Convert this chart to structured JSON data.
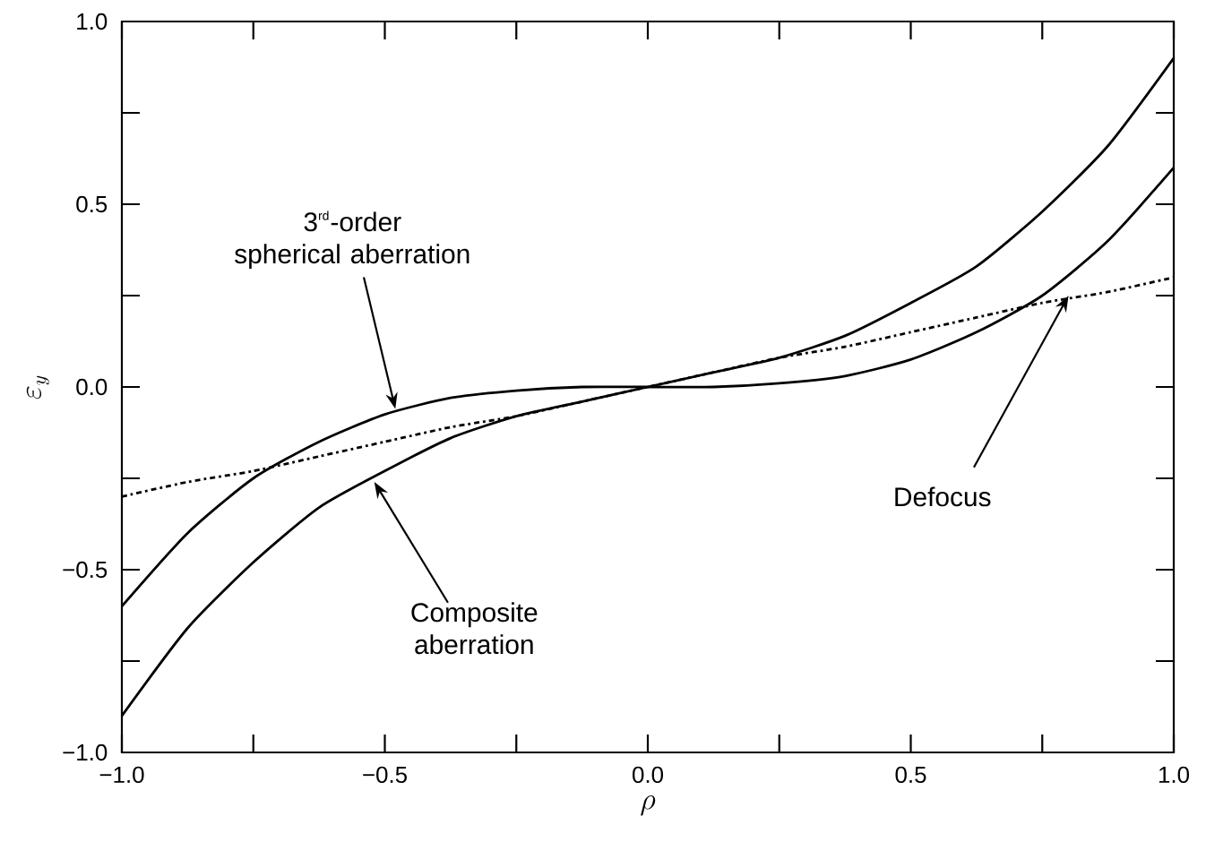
{
  "chart_data": {
    "type": "line",
    "xlabel": "\\rho",
    "ylabel": "\\varepsilon_y",
    "xlim": [
      -1,
      1
    ],
    "ylim": [
      -1,
      1
    ],
    "x": [
      -1,
      -0.875,
      -0.75,
      -0.625,
      -0.5,
      -0.375,
      -0.25,
      -0.125,
      0,
      0.125,
      0.25,
      0.375,
      0.5,
      0.625,
      0.75,
      0.875,
      1
    ],
    "xticks": [
      {
        "value": -1,
        "label": "−1.0"
      },
      {
        "value": -0.75,
        "label": null
      },
      {
        "value": -0.5,
        "label": "−0.5"
      },
      {
        "value": -0.25,
        "label": null
      },
      {
        "value": 0,
        "label": "0.0"
      },
      {
        "value": 0.25,
        "label": null
      },
      {
        "value": 0.5,
        "label": "0.5"
      },
      {
        "value": 0.75,
        "label": null
      },
      {
        "value": 1,
        "label": "1.0"
      }
    ],
    "yticks": [
      {
        "value": -1,
        "label": "−1.0"
      },
      {
        "value": -0.75,
        "label": null
      },
      {
        "value": -0.5,
        "label": "−0.5"
      },
      {
        "value": -0.25,
        "label": null
      },
      {
        "value": 0,
        "label": "0.0"
      },
      {
        "value": 0.25,
        "label": null
      },
      {
        "value": 0.5,
        "label": "0.5"
      },
      {
        "value": 0.75,
        "label": null
      },
      {
        "value": 1,
        "label": "1.0"
      }
    ],
    "marker": "none",
    "grid": false,
    "series": [
      {
        "color": "#000000",
        "line_style": "solid",
        "values": [
          -0.6,
          -0.4,
          -0.25,
          -0.15,
          -0.075,
          -0.03,
          -0.01,
          0,
          0,
          0,
          0.01,
          0.03,
          0.075,
          0.15,
          0.25,
          0.4,
          0.6
        ]
      },
      {
        "color": "#000000",
        "line_style": "solid",
        "values": [
          -0.9,
          -0.66,
          -0.48,
          -0.33,
          -0.23,
          -0.14,
          -0.08,
          -0.04,
          0,
          0.04,
          0.08,
          0.14,
          0.23,
          0.33,
          0.48,
          0.66,
          0.9
        ]
      },
      {
        "color": "#000000",
        "line_style": "dashdot",
        "values": [
          -0.3,
          -0.26,
          -0.23,
          -0.19,
          -0.15,
          -0.11,
          -0.08,
          -0.04,
          0,
          0.04,
          0.08,
          0.11,
          0.15,
          0.19,
          0.23,
          0.26,
          0.3
        ]
      }
    ],
    "annotations": [
      {
        "text": "\\begin{array}{c}\\mbox{3}^{\\mbox{\\scriptsize rd}}\\mbox{-order}\\\\ \\mbox{spherical aberration}\\end{array}",
        "x": -0.48,
        "y": -0.06
      },
      {
        "text": "Composite aberration",
        "x": -0.52,
        "y": -0.26
      },
      {
        "text": "Defocus",
        "x": 0.8,
        "y": 0.25
      }
    ]
  }
}
